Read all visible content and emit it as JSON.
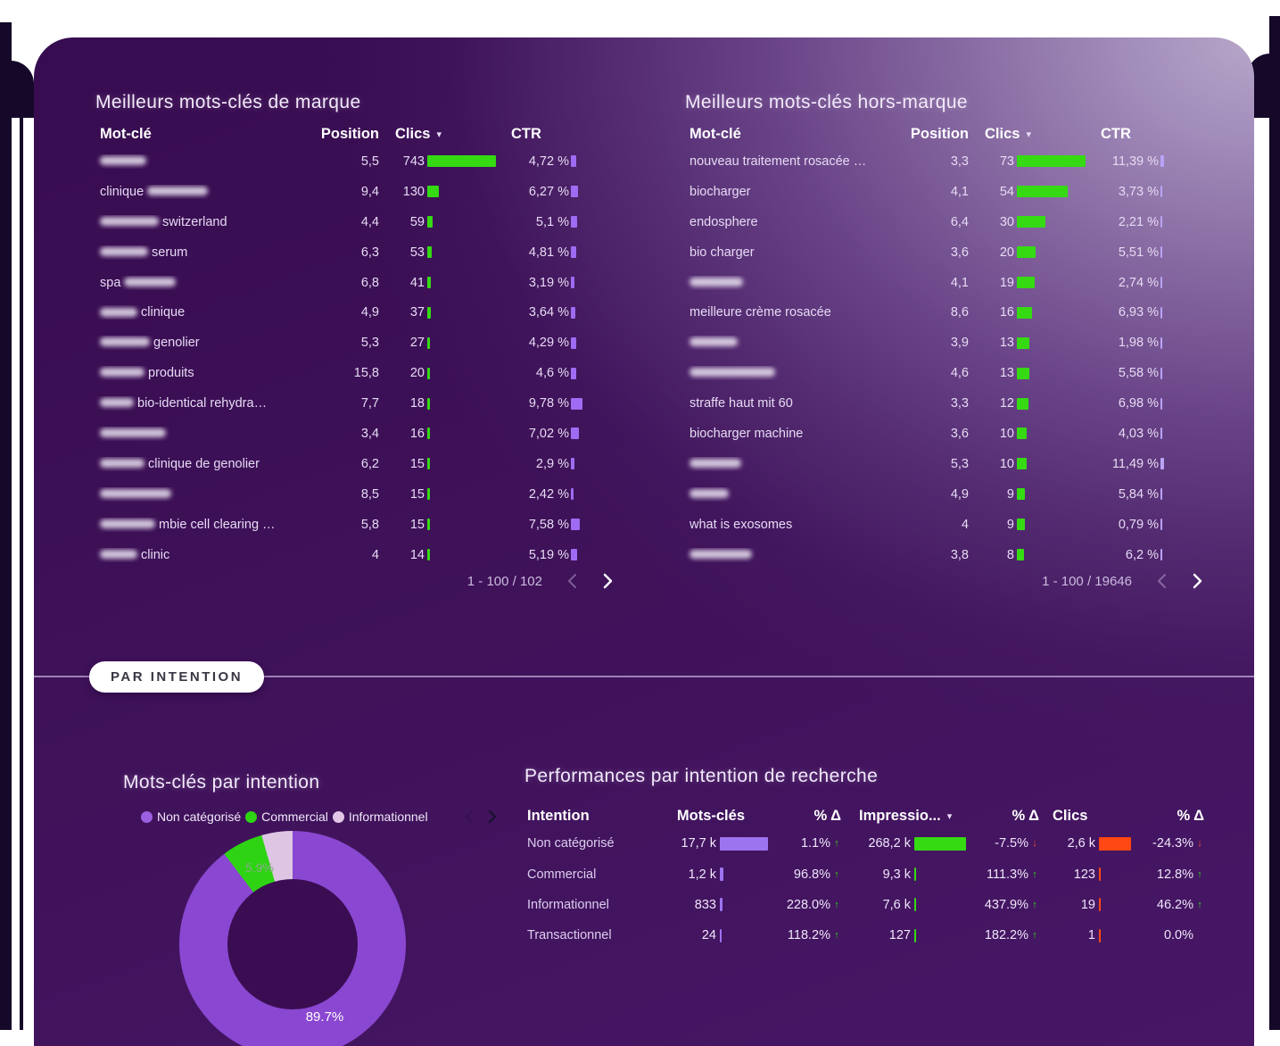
{
  "brand_table": {
    "title": "Meilleurs mots-clés de marque",
    "columns": {
      "keyword": "Mot-clé",
      "position": "Position",
      "clicks": "Clics",
      "ctr": "CTR"
    },
    "pagination": "1 - 100 / 102",
    "clicks_max": 743,
    "ctr_max": 9.78,
    "rows": [
      {
        "prefix": "",
        "redact": 52,
        "suffix": "",
        "position": "5,5",
        "clicks": 743,
        "clicks_label": "743",
        "ctr": 4.72,
        "ctr_label": "4,72 %"
      },
      {
        "prefix": "clinique ",
        "redact": 68,
        "suffix": "",
        "position": "9,4",
        "clicks": 130,
        "clicks_label": "130",
        "ctr": 6.27,
        "ctr_label": "6,27 %"
      },
      {
        "prefix": "",
        "redact": 66,
        "suffix": "switzerland",
        "position": "4,4",
        "clicks": 59,
        "clicks_label": "59",
        "ctr": 5.1,
        "ctr_label": "5,1 %"
      },
      {
        "prefix": "",
        "redact": 54,
        "suffix": "serum",
        "position": "6,3",
        "clicks": 53,
        "clicks_label": "53",
        "ctr": 4.81,
        "ctr_label": "4,81 %"
      },
      {
        "prefix": "spa ",
        "redact": 58,
        "suffix": "",
        "position": "6,8",
        "clicks": 41,
        "clicks_label": "41",
        "ctr": 3.19,
        "ctr_label": "3,19 %"
      },
      {
        "prefix": "",
        "redact": 42,
        "suffix": "clinique",
        "position": "4,9",
        "clicks": 37,
        "clicks_label": "37",
        "ctr": 3.64,
        "ctr_label": "3,64 %"
      },
      {
        "prefix": "",
        "redact": 56,
        "suffix": "genolier",
        "position": "5,3",
        "clicks": 27,
        "clicks_label": "27",
        "ctr": 4.29,
        "ctr_label": "4,29 %"
      },
      {
        "prefix": "",
        "redact": 50,
        "suffix": "produits",
        "position": "15,8",
        "clicks": 20,
        "clicks_label": "20",
        "ctr": 4.6,
        "ctr_label": "4,6 %"
      },
      {
        "prefix": "",
        "redact": 38,
        "suffix": "bio-identical rehydra…",
        "position": "7,7",
        "clicks": 18,
        "clicks_label": "18",
        "ctr": 9.78,
        "ctr_label": "9,78 %"
      },
      {
        "prefix": "",
        "redact": 74,
        "suffix": "",
        "position": "3,4",
        "clicks": 16,
        "clicks_label": "16",
        "ctr": 7.02,
        "ctr_label": "7,02 %"
      },
      {
        "prefix": "",
        "redact": 50,
        "suffix": "clinique de genolier",
        "position": "6,2",
        "clicks": 15,
        "clicks_label": "15",
        "ctr": 2.9,
        "ctr_label": "2,9 %"
      },
      {
        "prefix": "",
        "redact": 80,
        "suffix": "",
        "position": "8,5",
        "clicks": 15,
        "clicks_label": "15",
        "ctr": 2.42,
        "ctr_label": "2,42 %"
      },
      {
        "prefix": "",
        "redact": 62,
        "suffix": "mbie cell clearing …",
        "position": "5,8",
        "clicks": 15,
        "clicks_label": "15",
        "ctr": 7.58,
        "ctr_label": "7,58 %"
      },
      {
        "prefix": "",
        "redact": 42,
        "suffix": "clinic",
        "position": "4",
        "clicks": 14,
        "clicks_label": "14",
        "ctr": 5.19,
        "ctr_label": "5,19 %"
      }
    ]
  },
  "nonbrand_table": {
    "title": "Meilleurs mots-clés hors-marque",
    "columns": {
      "keyword": "Mot-clé",
      "position": "Position",
      "clicks": "Clics",
      "ctr": "CTR"
    },
    "pagination": "1 - 100 / 19646",
    "clicks_max": 73,
    "ctr_max": 11.49,
    "rows": [
      {
        "prefix": "nouveau traitement rosacée …",
        "redact": 0,
        "suffix": "",
        "position": "3,3",
        "clicks": 73,
        "clicks_label": "73",
        "ctr": 11.39,
        "ctr_label": "11,39 %"
      },
      {
        "prefix": "biocharger",
        "redact": 0,
        "suffix": "",
        "position": "4,1",
        "clicks": 54,
        "clicks_label": "54",
        "ctr": 3.73,
        "ctr_label": "3,73 %"
      },
      {
        "prefix": "endosphere",
        "redact": 0,
        "suffix": "",
        "position": "6,4",
        "clicks": 30,
        "clicks_label": "30",
        "ctr": 2.21,
        "ctr_label": "2,21 %"
      },
      {
        "prefix": "bio charger",
        "redact": 0,
        "suffix": "",
        "position": "3,6",
        "clicks": 20,
        "clicks_label": "20",
        "ctr": 5.51,
        "ctr_label": "5,51 %"
      },
      {
        "prefix": "",
        "redact": 60,
        "suffix": "",
        "position": "4,1",
        "clicks": 19,
        "clicks_label": "19",
        "ctr": 2.74,
        "ctr_label": "2,74 %"
      },
      {
        "prefix": "meilleure crème rosacée",
        "redact": 0,
        "suffix": "",
        "position": "8,6",
        "clicks": 16,
        "clicks_label": "16",
        "ctr": 6.93,
        "ctr_label": "6,93 %"
      },
      {
        "prefix": "",
        "redact": 54,
        "suffix": "",
        "position": "3,9",
        "clicks": 13,
        "clicks_label": "13",
        "ctr": 1.98,
        "ctr_label": "1,98 %"
      },
      {
        "prefix": "",
        "redact": 96,
        "suffix": "",
        "position": "4,6",
        "clicks": 13,
        "clicks_label": "13",
        "ctr": 5.58,
        "ctr_label": "5,58 %"
      },
      {
        "prefix": "straffe haut mit 60",
        "redact": 0,
        "suffix": "",
        "position": "3,3",
        "clicks": 12,
        "clicks_label": "12",
        "ctr": 6.98,
        "ctr_label": "6,98 %"
      },
      {
        "prefix": "biocharger machine",
        "redact": 0,
        "suffix": "",
        "position": "3,6",
        "clicks": 10,
        "clicks_label": "10",
        "ctr": 4.03,
        "ctr_label": "4,03 %"
      },
      {
        "prefix": "",
        "redact": 58,
        "suffix": "",
        "position": "5,3",
        "clicks": 10,
        "clicks_label": "10",
        "ctr": 11.49,
        "ctr_label": "11,49 %"
      },
      {
        "prefix": "",
        "redact": 44,
        "suffix": "",
        "position": "4,9",
        "clicks": 9,
        "clicks_label": "9",
        "ctr": 5.84,
        "ctr_label": "5,84 %"
      },
      {
        "prefix": "what is exosomes",
        "redact": 0,
        "suffix": "",
        "position": "4",
        "clicks": 9,
        "clicks_label": "9",
        "ctr": 0.79,
        "ctr_label": "0,79 %"
      },
      {
        "prefix": "",
        "redact": 70,
        "suffix": "",
        "position": "3,8",
        "clicks": 8,
        "clicks_label": "8",
        "ctr": 6.2,
        "ctr_label": "6,2 %"
      }
    ]
  },
  "intent": {
    "pill_label": "PAR INTENTION",
    "donut_title": "Mots-clés par intention",
    "legend": [
      {
        "label": "Non catégorisé",
        "color": "#9c5fe0"
      },
      {
        "label": "Commercial",
        "color": "#2ed413"
      },
      {
        "label": "Informationnel",
        "color": "#e2c8e6"
      }
    ],
    "perf_title": "Performances par intention de recherche",
    "perf_columns": [
      "Intention",
      "Mots-clés",
      "% Δ",
      "Impressio...",
      "% Δ",
      "Clics",
      "% Δ"
    ],
    "perf_max": {
      "keywords": 17700,
      "impressions": 268200,
      "clicks": 2600
    },
    "perf_rows": [
      {
        "intention": "Non catégorisé",
        "kw_label": "17,7 k",
        "kw": 17700,
        "kw_delta": "1.1%",
        "kw_dir": "up",
        "imp_label": "268,2 k",
        "imp": 268200,
        "imp_delta": "-7.5%",
        "imp_dir": "down",
        "clicks_label": "2,6 k",
        "clicks": 2600,
        "clicks_delta": "-24.3%",
        "clicks_dir": "down"
      },
      {
        "intention": "Commercial",
        "kw_label": "1,2 k",
        "kw": 1200,
        "kw_delta": "96.8%",
        "kw_dir": "up",
        "imp_label": "9,3 k",
        "imp": 9300,
        "imp_delta": "111.3%",
        "imp_dir": "up",
        "clicks_label": "123",
        "clicks": 123,
        "clicks_delta": "12.8%",
        "clicks_dir": "up"
      },
      {
        "intention": "Informationnel",
        "kw_label": "833",
        "kw": 833,
        "kw_delta": "228.0%",
        "kw_dir": "up",
        "imp_label": "7,6 k",
        "imp": 7600,
        "imp_delta": "437.9%",
        "imp_dir": "up",
        "clicks_label": "19",
        "clicks": 19,
        "clicks_delta": "46.2%",
        "clicks_dir": "up"
      },
      {
        "intention": "Transactionnel",
        "kw_label": "24",
        "kw": 24,
        "kw_delta": "118.2%",
        "kw_dir": "up",
        "imp_label": "127",
        "imp": 127,
        "imp_delta": "182.2%",
        "imp_dir": "up",
        "clicks_label": "1",
        "clicks": 1,
        "clicks_delta": "0.0%",
        "clicks_dir": "none"
      }
    ]
  },
  "chart_data": {
    "type": "pie",
    "title": "Mots-clés par intention",
    "categories": [
      "Non catégorisé",
      "Commercial",
      "Informationnel"
    ],
    "values": [
      89.7,
      5.9,
      4.4
    ],
    "colors": [
      "#8a47d1",
      "#2ed413",
      "#dfc5e4"
    ],
    "labels_shown": [
      "89.7%",
      "5.9%"
    ],
    "donut": true,
    "legend_position": "top"
  },
  "colors": {
    "clicks_bar": "#35da12",
    "ctr_bar": "#9e6cf2",
    "kw_bar": "#9d74f0",
    "imp_bar": "#35da12",
    "clicks_perf_bar": "#ff4812",
    "up_arrow": "#2fd80f",
    "down_arrow": "#ff4b2a",
    "card_bg": "#3c0f55"
  }
}
